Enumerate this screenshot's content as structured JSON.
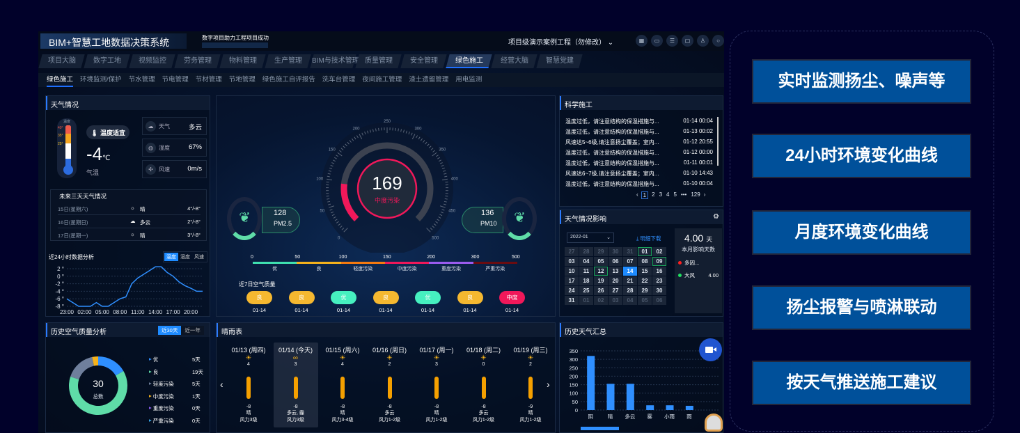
{
  "header": {
    "title": "BIM+智慧工地数据决策系统",
    "slogan": "数字项目助力工程项目成功",
    "project": "项目级演示案例工程（勿修改）",
    "icons": [
      "grid-icon",
      "monitor-icon",
      "list-icon",
      "screen-icon",
      "shirt-icon",
      "refresh-icon"
    ]
  },
  "tabs": [
    {
      "label": "项目大脑"
    },
    {
      "label": "数字工地"
    },
    {
      "label": "视频监控"
    },
    {
      "label": "劳务管理"
    },
    {
      "label": "物料管理"
    },
    {
      "label": "生产管理"
    },
    {
      "label": "BIM与技术管理"
    },
    {
      "label": "质量管理"
    },
    {
      "label": "安全管理"
    },
    {
      "label": "绿色施工",
      "active": true
    },
    {
      "label": "经营大脑"
    },
    {
      "label": "智慧党建"
    }
  ],
  "subnav": [
    {
      "label": "绿色施工",
      "active": true
    },
    {
      "label": "环境监测/保护"
    },
    {
      "label": "节水管理"
    },
    {
      "label": "节电管理"
    },
    {
      "label": "节材管理"
    },
    {
      "label": "节地管理"
    },
    {
      "label": "绿色施工自评报告"
    },
    {
      "label": "洗车台管理"
    },
    {
      "label": "夜间施工管理"
    },
    {
      "label": "渣土遗留管理"
    },
    {
      "label": "用电监测"
    }
  ],
  "weather": {
    "title": "天气情况",
    "comfort": "温度适宜",
    "temp": "-4",
    "unit": "℃",
    "temp_label": "气温",
    "thermo_label": "温度",
    "thermo_ticks": [
      "40°",
      "35°",
      "25°"
    ],
    "items": [
      {
        "label": "天气",
        "value": "多云",
        "icon": "weather-icon"
      },
      {
        "label": "湿度",
        "value": "67%",
        "icon": "humidity-icon"
      },
      {
        "label": "风速",
        "value": "0m/s",
        "icon": "wind-icon"
      }
    ],
    "forecast_title": "未来三天天气情况",
    "forecast": [
      {
        "day": "15日(星期六)",
        "cond": "晴",
        "icon": "☼",
        "range": "4°/-8°"
      },
      {
        "day": "16日(星期日)",
        "cond": "多云",
        "icon": "☁",
        "range": "2°/-8°"
      },
      {
        "day": "17日(星期一)",
        "cond": "晴",
        "icon": "☼",
        "range": "3°/-8°"
      }
    ],
    "chart_title": "近24小时数据分析",
    "chart_tabs": [
      {
        "label": "温度",
        "active": true
      },
      {
        "label": "湿度"
      },
      {
        "label": "风速"
      }
    ]
  },
  "chart_data": [
    {
      "type": "line",
      "title": "近24小时数据分析",
      "x": [
        "23:00",
        "00:00",
        "01:00",
        "02:00",
        "03:00",
        "04:00",
        "05:00",
        "06:00",
        "07:00",
        "08:00",
        "09:00",
        "10:00",
        "11:00",
        "12:00",
        "13:00",
        "14:00",
        "15:00",
        "16:00",
        "17:00",
        "18:00",
        "19:00",
        "20:00",
        "21:00",
        "22:00"
      ],
      "xticks": [
        "23:00",
        "02:00",
        "05:00",
        "08:00",
        "11:00",
        "14:00",
        "17:00",
        "20:00"
      ],
      "values": [
        -6,
        -7,
        -8,
        -8,
        -8,
        -7,
        -8,
        -8,
        -7,
        -6,
        -5.5,
        -2,
        -0.5,
        0.5,
        1.5,
        2.5,
        2.5,
        1,
        0,
        -1.5,
        -2.5,
        -3.2,
        -4,
        -4
      ],
      "ylim": [
        -8,
        2
      ],
      "yticks": [
        "2 °",
        "0 °",
        "-2 °",
        "-4 °",
        "-6 °",
        "-8 °"
      ],
      "grid": true,
      "color": "#2f8fff"
    },
    {
      "type": "pie",
      "title": "历史空气质量分析",
      "total": "30",
      "total_label": "总数",
      "slices": [
        {
          "name": "优",
          "value": 5,
          "unit": "5天",
          "color": "#2f8fff"
        },
        {
          "name": "良",
          "value": 19,
          "unit": "19天",
          "color": "#5fdca8"
        },
        {
          "name": "轻度污染",
          "value": 5,
          "unit": "5天",
          "color": "#6f7f9c"
        },
        {
          "name": "中度污染",
          "value": 1,
          "unit": "1天",
          "color": "#f5b21c"
        },
        {
          "name": "重度污染",
          "value": 0,
          "unit": "0天",
          "color": "#8a5cf0"
        },
        {
          "name": "严重污染",
          "value": 0,
          "unit": "0天",
          "color": "#38a8e8"
        }
      ]
    },
    {
      "type": "bar",
      "title": "历史天气汇总",
      "categories": [
        "阴",
        "晴",
        "多云",
        "雾",
        "小雨",
        "雨"
      ],
      "values": [
        320,
        155,
        155,
        28,
        28,
        25
      ],
      "ylim": [
        0,
        350
      ],
      "yticks": [
        0,
        50,
        100,
        150,
        200,
        250,
        300,
        350
      ],
      "grid": true,
      "color": "#2f8fff"
    }
  ],
  "aqi": {
    "value": "169",
    "level": "中度污染",
    "max": 500,
    "scale_ticks": [
      "0",
      "50",
      "100",
      "150",
      "200",
      "250",
      "300",
      "350",
      "400",
      "450",
      "500"
    ],
    "pm25": {
      "value": "128",
      "label": "PM2.5"
    },
    "pm10": {
      "value": "136",
      "label": "PM10"
    },
    "legend": [
      {
        "from": "0",
        "to": "50",
        "label": "优",
        "color": "#3fe0b0"
      },
      {
        "from": "50",
        "to": "100",
        "label": "良",
        "color": "#f5b21c"
      },
      {
        "from": "100",
        "to": "150",
        "label": "轻度污染",
        "color": "#f57a10"
      },
      {
        "from": "150",
        "to": "200",
        "label": "中度污染",
        "color": "#f0185a"
      },
      {
        "from": "200",
        "to": "300",
        "label": "重度污染",
        "color": "#9b5cf0"
      },
      {
        "from": "300",
        "to": "500",
        "label": "严重污染",
        "color": "#6a0c10"
      }
    ],
    "legend_end": "500",
    "week_title": "近7日空气质量",
    "week": [
      {
        "level": "良",
        "date": "01-14",
        "color": "#f5b830"
      },
      {
        "level": "良",
        "date": "01-14",
        "color": "#f5b830"
      },
      {
        "level": "优",
        "date": "01-14",
        "color": "#46f0c0"
      },
      {
        "level": "良",
        "date": "01-14",
        "color": "#f5b830"
      },
      {
        "level": "优",
        "date": "01-14",
        "color": "#46f0c0"
      },
      {
        "level": "良",
        "date": "01-14",
        "color": "#f5b830"
      },
      {
        "level": "中度",
        "date": "01-14",
        "color": "#f0185a"
      }
    ]
  },
  "science": {
    "title": "科学施工",
    "items": [
      {
        "text": "温度过低，请注意结构的保温措施与...",
        "time": "01-14 00:04"
      },
      {
        "text": "温度过低，请注意结构的保温措施与...",
        "time": "01-13 00:02"
      },
      {
        "text": "风速达5~6级,请注意扬尘覆盖；室内...",
        "time": "01-12 20:55"
      },
      {
        "text": "温度过低，请注意结构的保温措施与...",
        "time": "01-12 00:00"
      },
      {
        "text": "温度过低，请注意结构的保温措施与...",
        "time": "01-11 00:01"
      },
      {
        "text": "风速达6~7级,请注意扬尘覆盖；室内...",
        "time": "01-10 14:43"
      },
      {
        "text": "温度过低，请注意结构的保温措施与...",
        "time": "01-10 00:04"
      }
    ],
    "pages": [
      "1",
      "2",
      "3",
      "4",
      "5",
      "•••",
      "129"
    ],
    "current_page": "1"
  },
  "impact": {
    "title": "天气情况影响",
    "month": "2022-01",
    "download": "明细下载",
    "days": "4.00",
    "days_unit": "天",
    "days_label": "本月影响天数",
    "legend": [
      {
        "label": "多因...",
        "value": "",
        "color": "#ff2020"
      },
      {
        "label": "大风",
        "value": "4.00",
        "color": "#20e060"
      }
    ],
    "calendar": [
      [
        "27",
        "28",
        "29",
        "30",
        "31",
        "01",
        "02"
      ],
      [
        "03",
        "04",
        "05",
        "06",
        "07",
        "08",
        "09"
      ],
      [
        "10",
        "11",
        "12",
        "13",
        "14",
        "15",
        "16"
      ],
      [
        "17",
        "18",
        "19",
        "20",
        "21",
        "22",
        "23"
      ],
      [
        "24",
        "25",
        "26",
        "27",
        "28",
        "29",
        "30"
      ],
      [
        "31",
        "01",
        "02",
        "03",
        "04",
        "05",
        "06"
      ]
    ],
    "marked": [
      "01",
      "09",
      "12"
    ],
    "selected": "14"
  },
  "history_tabs": [
    {
      "label": "近30天",
      "active": true
    },
    {
      "label": "近一年"
    }
  ],
  "forecast7": {
    "title": "晴雨表",
    "days": [
      {
        "date": "01/13 (周四)",
        "high": "4",
        "low": "-8",
        "cond": "晴",
        "wind": "风力3级"
      },
      {
        "date": "01/14 (今天)",
        "high": "3",
        "low": "-8",
        "cond": "多云, 霾",
        "wind": "风力3级",
        "today": true
      },
      {
        "date": "01/15 (周六)",
        "high": "4",
        "low": "-8",
        "cond": "晴",
        "wind": "风力3-4级"
      },
      {
        "date": "01/16 (周日)",
        "high": "2",
        "low": "-8",
        "cond": "多云",
        "wind": "风力1-2级"
      },
      {
        "date": "01/17 (周一)",
        "high": "3",
        "low": "-8",
        "cond": "晴",
        "wind": "风力1-2级"
      },
      {
        "date": "01/18 (周二)",
        "high": "0",
        "low": "-8",
        "cond": "多云",
        "wind": "风力1-2级"
      },
      {
        "date": "01/19 (周三)",
        "high": "2",
        "low": "-9",
        "cond": "晴",
        "wind": "风力1-2级"
      }
    ]
  },
  "features": [
    "实时监测扬尘、噪声等",
    "24小时环境变化曲线",
    "月度环境变化曲线",
    "扬尘报警与喷淋联动",
    "按天气推送施工建议"
  ]
}
